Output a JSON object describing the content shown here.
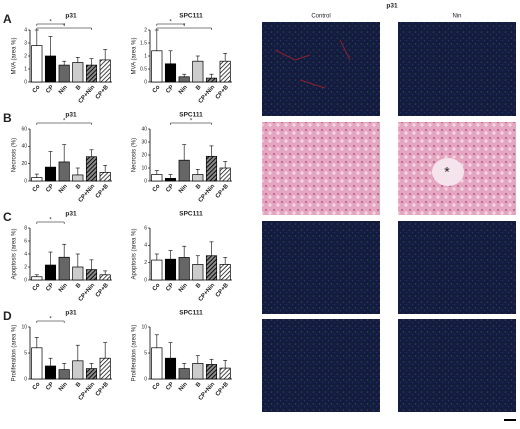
{
  "figure": {
    "panels": [
      "A",
      "B",
      "C",
      "D"
    ],
    "image_title": "p31",
    "image_columns": [
      "Control",
      "Nin"
    ]
  },
  "chart_data": [
    {
      "type": "bar",
      "title": "p31",
      "ylabel": "MVA (area %)",
      "categories": [
        "Co",
        "CP",
        "Nin",
        "B",
        "CP+Nin",
        "CP+B"
      ],
      "values": [
        2.8,
        2.0,
        1.3,
        1.5,
        1.3,
        1.7
      ],
      "errors": [
        1.2,
        1.5,
        0.3,
        0.4,
        0.5,
        0.8
      ],
      "colors": [
        "#ffffff",
        "#000000",
        "#666666",
        "#cccccc",
        "#333333",
        "#ffffff"
      ],
      "patterns": [
        "solid",
        "solid",
        "solid",
        "solid",
        "hatch",
        "hatch"
      ],
      "ylim": [
        0,
        4
      ],
      "yticks": [
        0,
        1,
        2,
        3,
        4
      ],
      "significance": [
        {
          "between": [
            "Co",
            "Nin"
          ],
          "label": "*"
        },
        {
          "between": [
            "Co",
            "CP+Nin"
          ],
          "label": "*"
        }
      ]
    },
    {
      "type": "bar",
      "title": "SPC111",
      "ylabel": "MVA (area %)",
      "categories": [
        "Co",
        "CP",
        "Nin",
        "B",
        "CP+Nin",
        "CP+B"
      ],
      "values": [
        1.2,
        0.7,
        0.2,
        0.8,
        0.15,
        0.8
      ],
      "errors": [
        0.8,
        0.5,
        0.1,
        0.2,
        0.15,
        0.3
      ],
      "colors": [
        "#ffffff",
        "#000000",
        "#666666",
        "#cccccc",
        "#333333",
        "#ffffff"
      ],
      "patterns": [
        "solid",
        "solid",
        "solid",
        "solid",
        "hatch",
        "hatch"
      ],
      "ylim": [
        0,
        2
      ],
      "yticks": [
        0,
        0.5,
        1,
        1.5,
        2
      ],
      "significance": [
        {
          "between": [
            "Co",
            "Nin"
          ],
          "label": "*"
        },
        {
          "between": [
            "Co",
            "CP+Nin"
          ],
          "label": "*"
        }
      ]
    },
    {
      "type": "bar",
      "title": "p31",
      "ylabel": "Necrosis (%)",
      "categories": [
        "Co",
        "CP",
        "Nin",
        "B",
        "CP+Nin",
        "CP+B"
      ],
      "values": [
        4,
        16,
        22,
        7,
        28,
        10
      ],
      "errors": [
        4,
        18,
        20,
        8,
        8,
        8
      ],
      "colors": [
        "#ffffff",
        "#000000",
        "#666666",
        "#cccccc",
        "#333333",
        "#ffffff"
      ],
      "patterns": [
        "solid",
        "solid",
        "solid",
        "solid",
        "hatch",
        "hatch"
      ],
      "ylim": [
        0,
        60
      ],
      "yticks": [
        0,
        20,
        40,
        60
      ],
      "significance": [
        {
          "between": [
            "Co",
            "CP+Nin"
          ],
          "label": "*"
        }
      ]
    },
    {
      "type": "bar",
      "title": "SPC111",
      "ylabel": "Necrosis (%)",
      "categories": [
        "Co",
        "CP",
        "Nin",
        "B",
        "CP+Nin",
        "CP+B"
      ],
      "values": [
        5,
        2,
        16,
        5,
        19,
        10
      ],
      "errors": [
        3,
        3,
        12,
        4,
        8,
        5
      ],
      "colors": [
        "#ffffff",
        "#000000",
        "#666666",
        "#cccccc",
        "#333333",
        "#ffffff"
      ],
      "patterns": [
        "solid",
        "solid",
        "solid",
        "solid",
        "hatch",
        "hatch"
      ],
      "ylim": [
        0,
        40
      ],
      "yticks": [
        0,
        10,
        20,
        30,
        40
      ],
      "significance": [
        {
          "between": [
            "CP",
            "CP+Nin"
          ],
          "label": "*"
        }
      ]
    },
    {
      "type": "bar",
      "title": "p31",
      "ylabel": "Apoptosis (area %)",
      "categories": [
        "Co",
        "CP",
        "Nin",
        "B",
        "CP+Nin",
        "CP+B"
      ],
      "values": [
        0.5,
        2.3,
        3.5,
        2,
        1.6,
        0.8
      ],
      "errors": [
        0.3,
        2,
        2,
        2,
        1.5,
        0.6
      ],
      "colors": [
        "#ffffff",
        "#000000",
        "#666666",
        "#cccccc",
        "#333333",
        "#ffffff"
      ],
      "patterns": [
        "solid",
        "solid",
        "solid",
        "solid",
        "hatch",
        "hatch"
      ],
      "ylim": [
        0,
        8
      ],
      "yticks": [
        0,
        2,
        4,
        6,
        8
      ],
      "significance": [
        {
          "between": [
            "Co",
            "Nin"
          ],
          "label": "*"
        }
      ]
    },
    {
      "type": "bar",
      "title": "SPC111",
      "ylabel": "Apoptosis (area %)",
      "categories": [
        "Co",
        "CP",
        "Nin",
        "B",
        "CP+Nin",
        "CP+B"
      ],
      "values": [
        2.3,
        2.4,
        2.6,
        1.8,
        2.8,
        1.8
      ],
      "errors": [
        0.7,
        1,
        1.3,
        1,
        1.6,
        0.8
      ],
      "colors": [
        "#ffffff",
        "#000000",
        "#666666",
        "#cccccc",
        "#333333",
        "#ffffff"
      ],
      "patterns": [
        "solid",
        "solid",
        "solid",
        "solid",
        "hatch",
        "hatch"
      ],
      "ylim": [
        0,
        6
      ],
      "yticks": [
        0,
        2,
        4,
        6
      ],
      "significance": []
    },
    {
      "type": "bar",
      "title": "p31",
      "ylabel": "Proliferation (area %)",
      "categories": [
        "Co",
        "CP",
        "Nin",
        "B",
        "CP+Nin",
        "CP+B"
      ],
      "values": [
        6,
        2.5,
        1.8,
        3.5,
        2,
        4
      ],
      "errors": [
        2,
        1.5,
        1.2,
        3,
        1,
        3
      ],
      "colors": [
        "#ffffff",
        "#000000",
        "#666666",
        "#cccccc",
        "#333333",
        "#ffffff"
      ],
      "patterns": [
        "solid",
        "solid",
        "solid",
        "solid",
        "hatch",
        "hatch"
      ],
      "ylim": [
        0,
        10
      ],
      "yticks": [
        0,
        5,
        10
      ],
      "significance": [
        {
          "between": [
            "Co",
            "Nin"
          ],
          "label": "*"
        }
      ]
    },
    {
      "type": "bar",
      "title": "SPC111",
      "ylabel": "Proliferation (area %)",
      "categories": [
        "Co",
        "CP",
        "Nin",
        "B",
        "CP+Nin",
        "CP+B"
      ],
      "values": [
        6,
        4,
        2,
        3,
        2.8,
        2.1
      ],
      "errors": [
        2.5,
        3,
        1,
        1.5,
        1,
        1.5
      ],
      "colors": [
        "#ffffff",
        "#000000",
        "#666666",
        "#cccccc",
        "#333333",
        "#ffffff"
      ],
      "patterns": [
        "solid",
        "solid",
        "solid",
        "solid",
        "hatch",
        "hatch"
      ],
      "ylim": [
        0,
        10
      ],
      "yticks": [
        0,
        5,
        10
      ],
      "significance": []
    }
  ]
}
